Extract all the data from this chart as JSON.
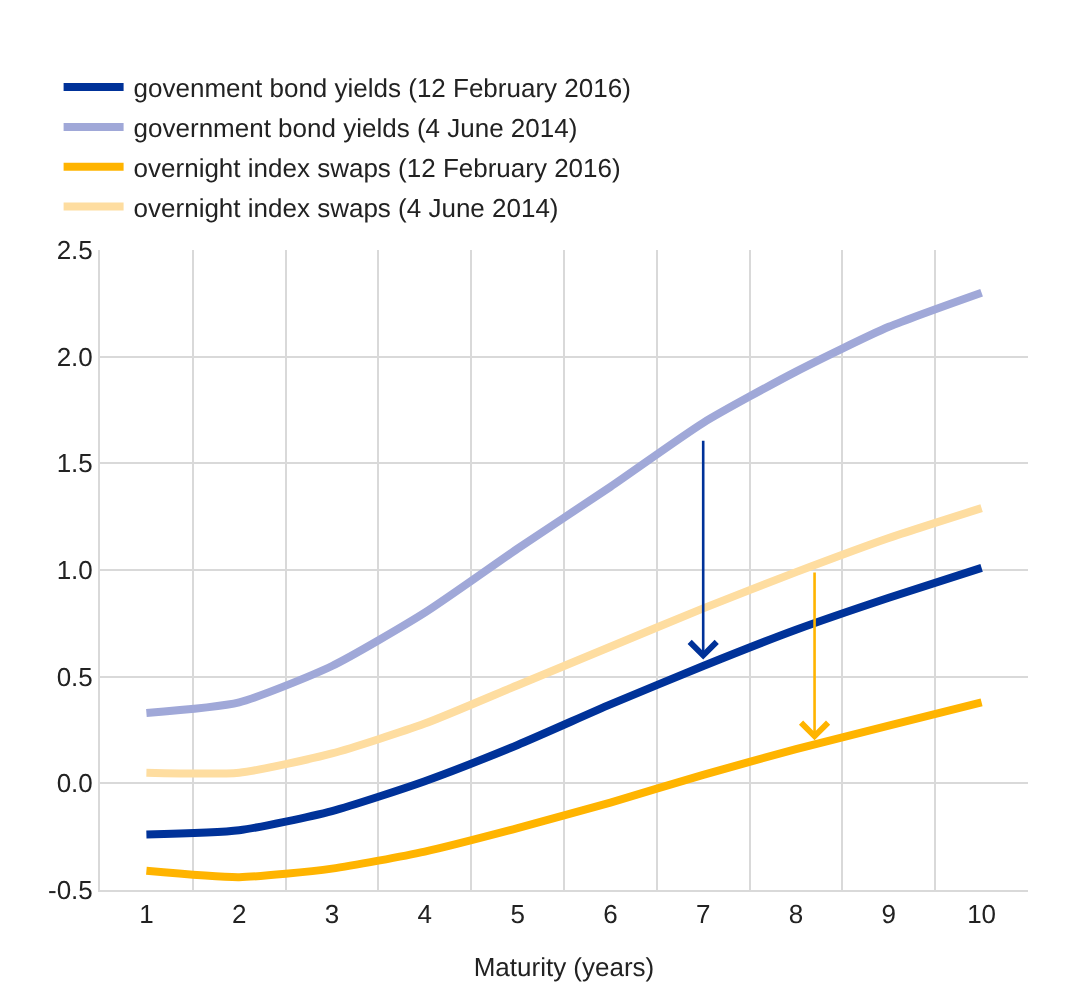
{
  "chart_data": {
    "type": "line",
    "xlabel": "Maturity (years)",
    "x": [
      1,
      2,
      3,
      4,
      5,
      6,
      7,
      8,
      9,
      10
    ],
    "series": [
      {
        "name": "govenment bond yields (12 February 2016)",
        "color": "#003299",
        "values": [
          -0.24,
          -0.22,
          -0.13,
          0.01,
          0.18,
          0.37,
          0.55,
          0.72,
          0.87,
          1.01
        ]
      },
      {
        "name": "government bond yields (4 June 2014)",
        "color": "#a0a8d8",
        "values": [
          0.33,
          0.38,
          0.55,
          0.8,
          1.1,
          1.39,
          1.69,
          1.93,
          2.14,
          2.3
        ]
      },
      {
        "name": "overnight index swaps (12 February 2016)",
        "color": "#ffb400",
        "values": [
          -0.41,
          -0.44,
          -0.4,
          -0.32,
          -0.21,
          -0.09,
          0.04,
          0.16,
          0.27,
          0.38
        ]
      },
      {
        "name": "overnight index swaps (4 June 2014)",
        "color": "#fedda0",
        "values": [
          0.05,
          0.05,
          0.14,
          0.28,
          0.46,
          0.64,
          0.82,
          0.99,
          1.15,
          1.29
        ]
      }
    ],
    "xlim": [
      0.5,
      10.5
    ],
    "xticks": [
      1,
      2,
      3,
      4,
      5,
      6,
      7,
      8,
      9,
      10
    ],
    "ylim": [
      -0.5,
      2.5
    ],
    "yticks": [
      {
        "value": -0.5,
        "label": "-0.5"
      },
      {
        "value": 0,
        "label": "0.0"
      },
      {
        "value": 0.5,
        "label": "0.5"
      },
      {
        "value": 1,
        "label": "1.0"
      },
      {
        "value": 1.5,
        "label": "1.5"
      },
      {
        "value": 2,
        "label": "2.0"
      },
      {
        "value": 2.5,
        "label": "2.5"
      }
    ],
    "grid": true,
    "legend": "top left",
    "marker": "none",
    "line_style": "solid"
  }
}
